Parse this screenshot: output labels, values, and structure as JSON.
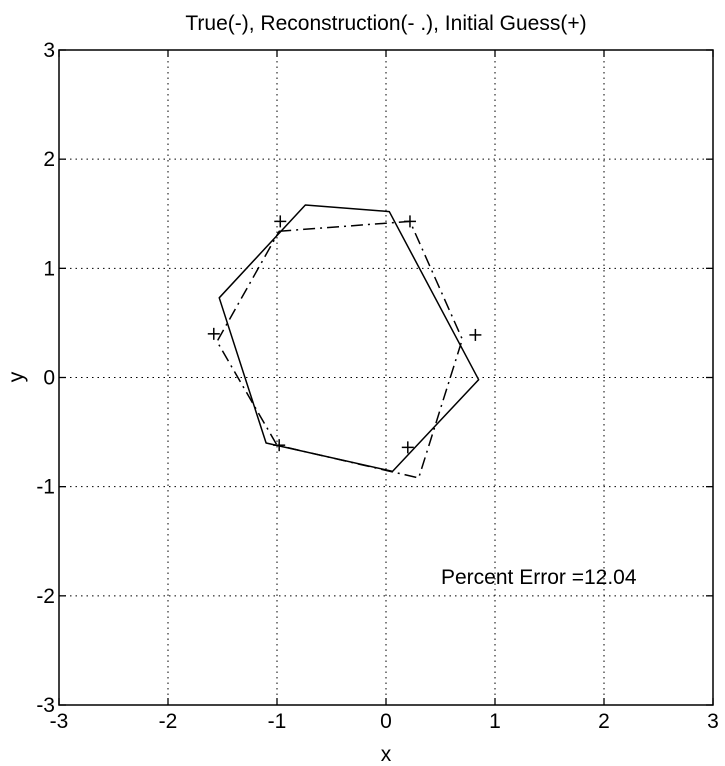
{
  "chart_data": {
    "type": "line",
    "title": "True(-), Reconstruction(- .), Initial Guess(+)",
    "xlabel": "x",
    "ylabel": "y",
    "xlim": [
      -3,
      3
    ],
    "ylim": [
      -3,
      3
    ],
    "xticks": [
      -3,
      -2,
      -1,
      0,
      1,
      2,
      3
    ],
    "yticks": [
      -3,
      -2,
      -1,
      0,
      1,
      2,
      3
    ],
    "xtick_labels": [
      "-3",
      "-2",
      "-1",
      "0",
      "1",
      "2",
      "3"
    ],
    "ytick_labels": [
      "-3",
      "-2",
      "-1",
      "0",
      "1",
      "2",
      "3"
    ],
    "grid": true,
    "annotation": "Percent Error =12.04",
    "series": [
      {
        "style": "solid",
        "closed": true,
        "points": [
          [
            -0.74,
            1.58
          ],
          [
            0.03,
            1.52
          ],
          [
            0.85,
            -0.02
          ],
          [
            0.06,
            -0.86
          ],
          [
            -1.1,
            -0.6
          ],
          [
            -1.53,
            0.73
          ]
        ]
      },
      {
        "style": "dashdot",
        "closed": true,
        "points": [
          [
            -0.98,
            1.34
          ],
          [
            0.22,
            1.43
          ],
          [
            0.7,
            0.35
          ],
          [
            0.3,
            -0.92
          ],
          [
            -1.0,
            -0.62
          ],
          [
            -1.55,
            0.33
          ]
        ]
      },
      {
        "style": "markers",
        "marker": "+",
        "points": [
          [
            -0.97,
            1.43
          ],
          [
            0.22,
            1.43
          ],
          [
            0.82,
            0.39
          ],
          [
            0.2,
            -0.64
          ],
          [
            -0.98,
            -0.62
          ],
          [
            -1.58,
            0.4
          ]
        ]
      }
    ]
  }
}
